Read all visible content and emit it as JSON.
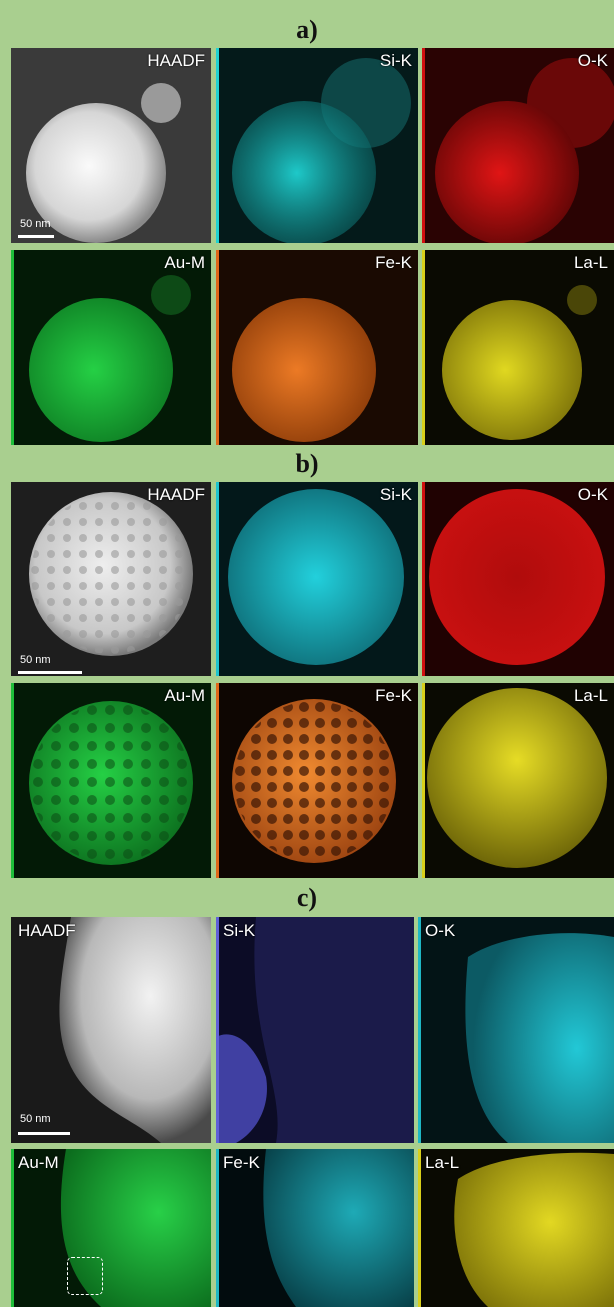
{
  "panels": [
    {
      "label": "a)",
      "scale_bar": "50 nm",
      "maps": [
        {
          "label": "HAADF",
          "color": "#d8d8d8"
        },
        {
          "label": "Si-K",
          "color": "#1fd2d2"
        },
        {
          "label": "O-K",
          "color": "#d01010"
        },
        {
          "label": "Au-M",
          "color": "#1fbf3a"
        },
        {
          "label": "Fe-K",
          "color": "#e0681a"
        },
        {
          "label": "La-L",
          "color": "#d8cf1a"
        }
      ]
    },
    {
      "label": "b)",
      "scale_bar": "50 nm",
      "maps": [
        {
          "label": "HAADF",
          "color": "#d8d8d8"
        },
        {
          "label": "Si-K",
          "color": "#1fc4cf"
        },
        {
          "label": "O-K",
          "color": "#d01010"
        },
        {
          "label": "Au-M",
          "color": "#1fbf3a"
        },
        {
          "label": "Fe-K",
          "color": "#e0681a"
        },
        {
          "label": "La-L",
          "color": "#d8cf1a"
        }
      ]
    },
    {
      "label": "c)",
      "scale_bar": "50 nm",
      "maps": [
        {
          "label": "HAADF",
          "color": "#d8d8d8"
        },
        {
          "label": "Si-K",
          "color": "#6060d8"
        },
        {
          "label": "O-K",
          "color": "#1fb7c4"
        },
        {
          "label": "Au-M",
          "color": "#1fbf3a"
        },
        {
          "label": "Fe-K",
          "color": "#1fb7c4"
        },
        {
          "label": "La-L",
          "color": "#d8cf1a"
        }
      ]
    }
  ]
}
